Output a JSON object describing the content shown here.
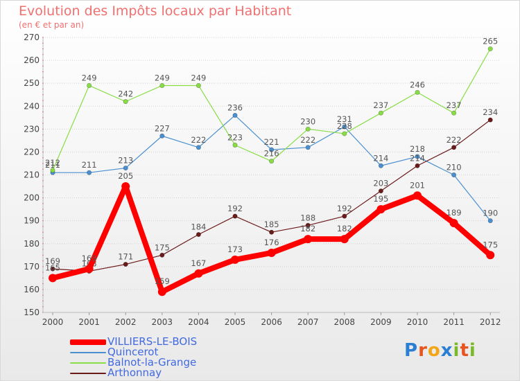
{
  "header": {
    "title": "Evolution des Impôts locaux par Habitant",
    "subtitle": "(en € et par an)"
  },
  "logo": {
    "text": "Proxiti",
    "colors": [
      "#2a7fd4",
      "#e8541e",
      "#f2a516",
      "#2a7fd4",
      "#7ab929",
      "#e8541e",
      "#7ab929"
    ]
  },
  "chart_data": {
    "type": "line",
    "title": "Evolution des Impôts locaux par Habitant",
    "subtitle": "(en € et par an)",
    "xlabel": "",
    "ylabel": "",
    "categories": [
      "2000",
      "2001",
      "2002",
      "2003",
      "2004",
      "2005",
      "2006",
      "2007",
      "2008",
      "2009",
      "2010",
      "2011",
      "2012"
    ],
    "ylim": [
      150,
      270
    ],
    "yticks": [
      150,
      160,
      170,
      180,
      190,
      200,
      210,
      220,
      230,
      240,
      250,
      260,
      270
    ],
    "legend_position": "bottom-left",
    "series": [
      {
        "name": "VILLIERS-LE-BOIS",
        "color": "#ff0000",
        "values": [
          165,
          169,
          205,
          159,
          167,
          173,
          176,
          182,
          182,
          195,
          201,
          189,
          175
        ]
      },
      {
        "name": "Quincerot",
        "color": "#4a8fd0",
        "values": [
          211,
          211,
          213,
          227,
          222,
          236,
          221,
          222,
          231,
          214,
          218,
          210,
          190
        ]
      },
      {
        "name": "Balnot-la-Grange",
        "color": "#88dd44",
        "values": [
          212,
          249,
          242,
          249,
          249,
          223,
          216,
          230,
          228,
          237,
          246,
          237,
          265
        ]
      },
      {
        "name": "Arthonnay",
        "color": "#6b1a1a",
        "values": [
          169,
          168,
          171,
          175,
          184,
          192,
          185,
          188,
          192,
          203,
          214,
          222,
          234
        ]
      }
    ]
  }
}
